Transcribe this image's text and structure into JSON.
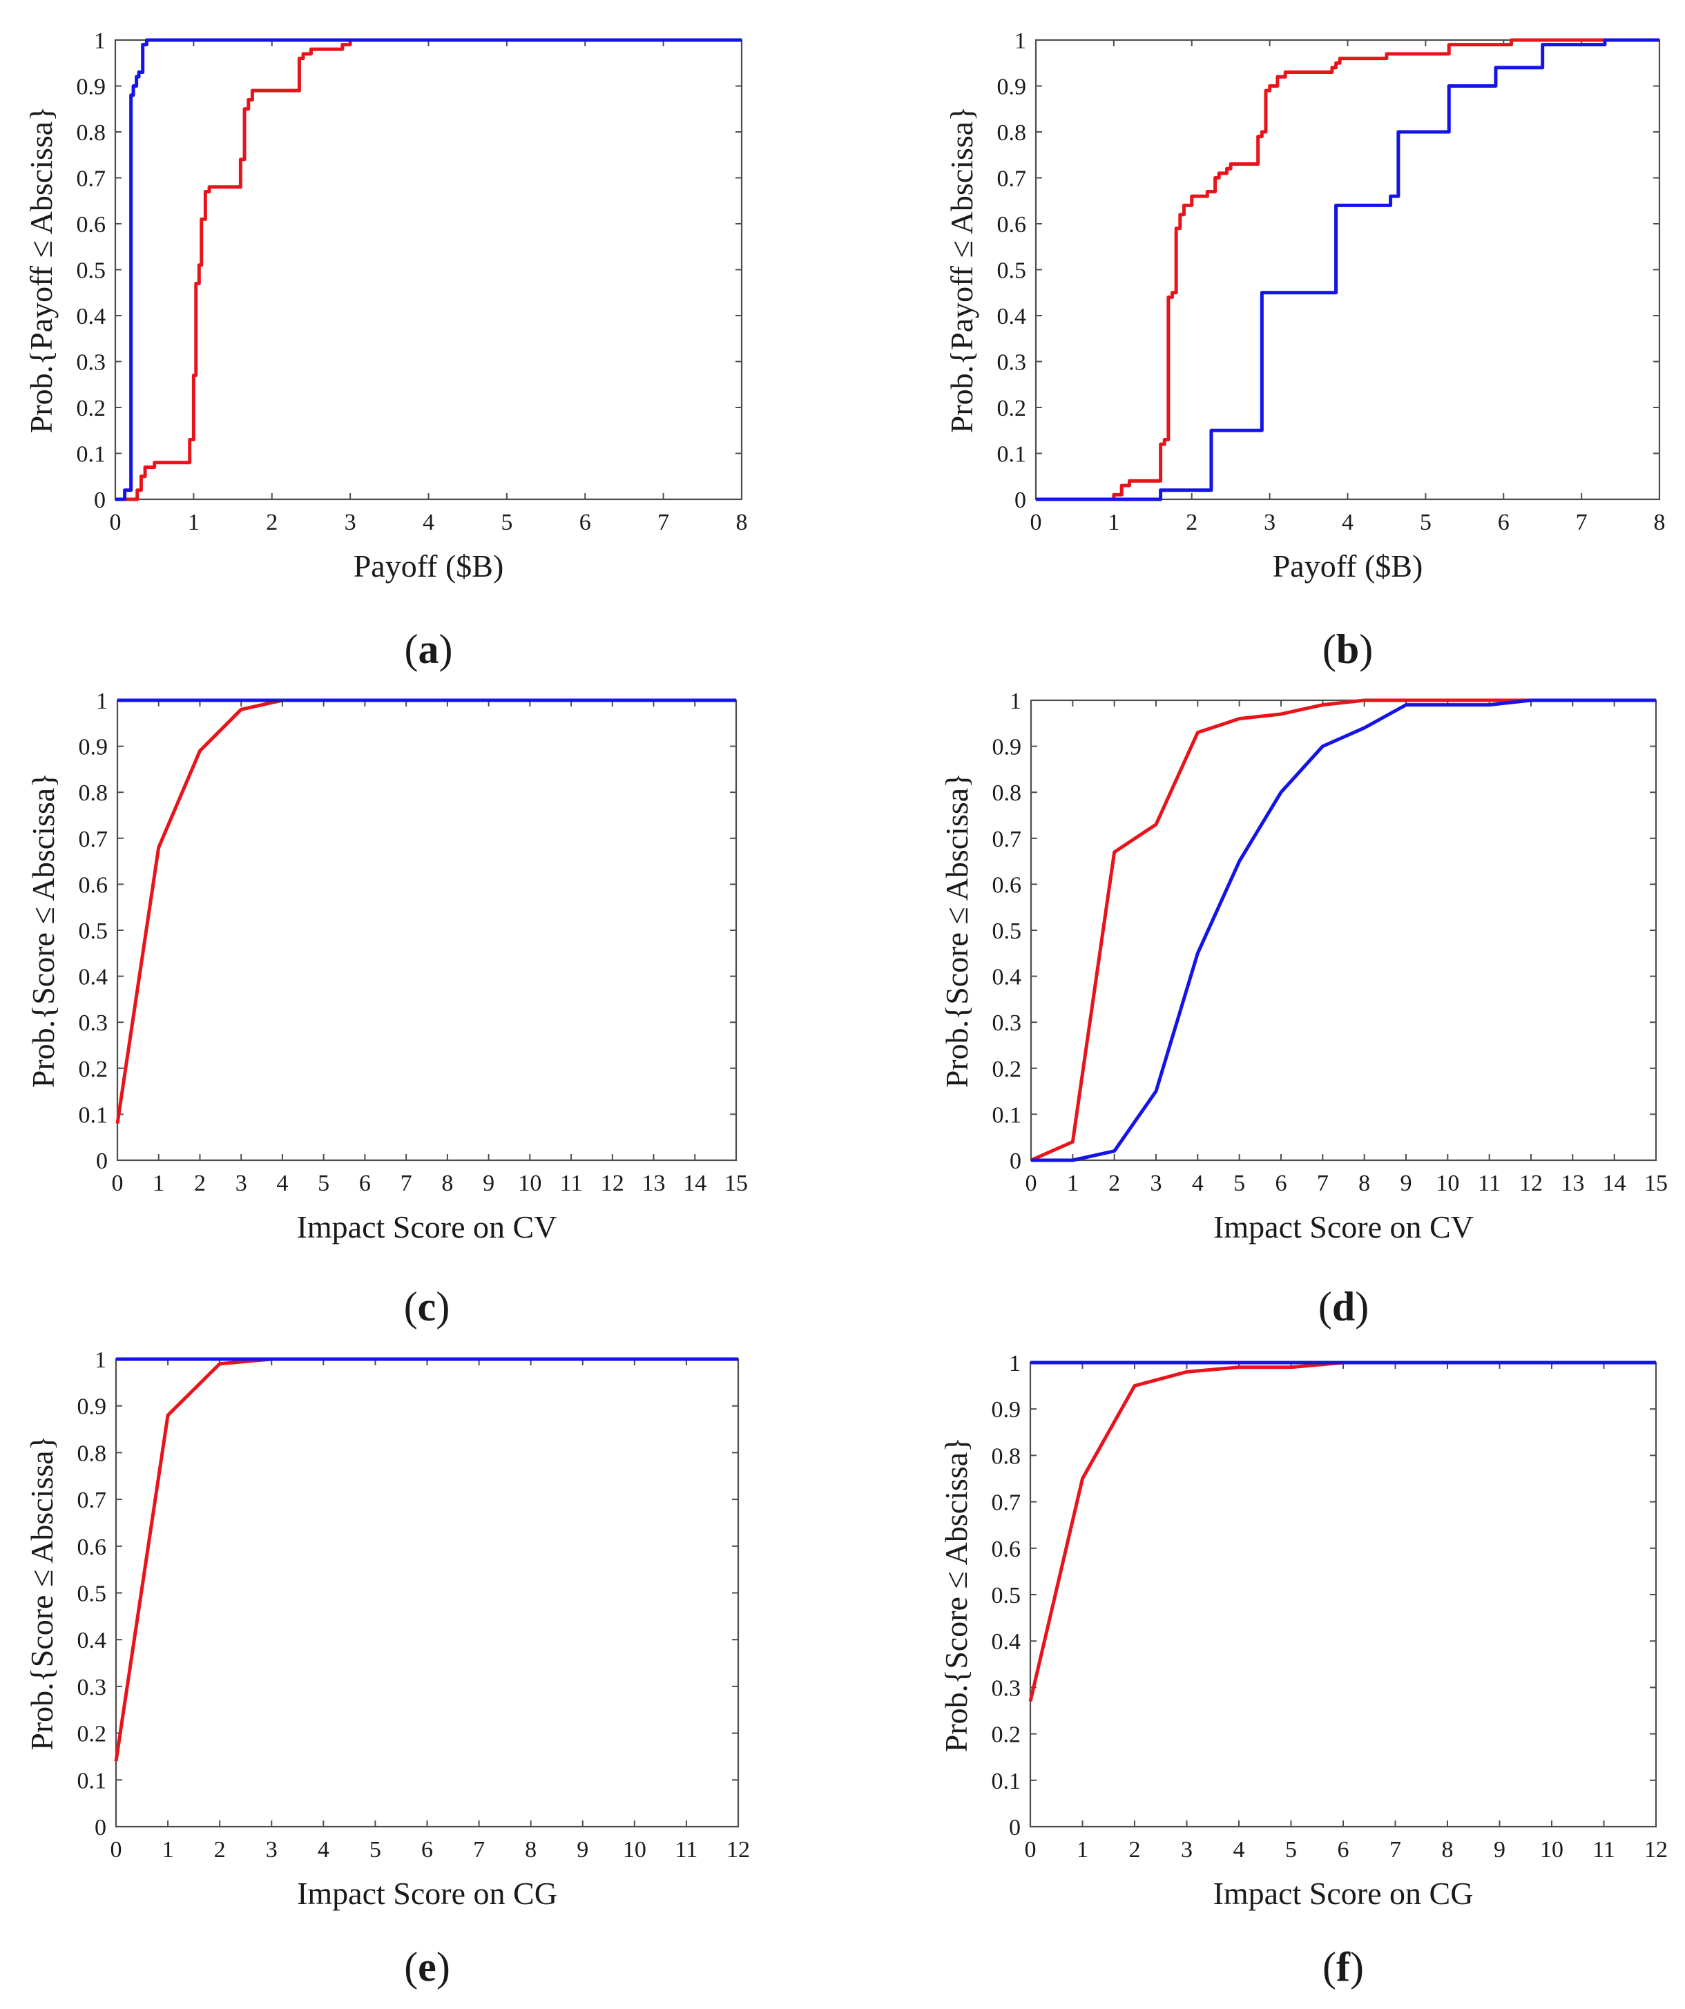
{
  "figure": {
    "panels": [
      {
        "id": "a",
        "label_open": "(",
        "label_letter": "a",
        "label_close": ")"
      },
      {
        "id": "b",
        "label_open": "(",
        "label_letter": "b",
        "label_close": ")"
      },
      {
        "id": "c",
        "label_open": "(",
        "label_letter": "c",
        "label_close": ")"
      },
      {
        "id": "d",
        "label_open": "(",
        "label_letter": "d",
        "label_close": ")"
      },
      {
        "id": "e",
        "label_open": "(",
        "label_letter": "e",
        "label_close": ")"
      },
      {
        "id": "f",
        "label_open": "(",
        "label_letter": "f",
        "label_close": ")"
      }
    ]
  },
  "chart_data": [
    {
      "id": "a",
      "type": "line",
      "step": true,
      "xlabel": "Payoff ($B)",
      "ylabel": "Prob.{Payoff ≤ Abscissa}",
      "xlim": [
        0,
        8
      ],
      "ylim": [
        0,
        1
      ],
      "xticks": [
        0,
        1,
        2,
        3,
        4,
        5,
        6,
        7,
        8
      ],
      "yticks": [
        0,
        0.1,
        0.2,
        0.3,
        0.4,
        0.5,
        0.6,
        0.7,
        0.8,
        0.9,
        1
      ],
      "series": [
        {
          "name": "red",
          "color": "#e8141c",
          "x": [
            0,
            0.18,
            0.28,
            0.33,
            0.38,
            0.5,
            0.95,
            1.0,
            1.03,
            1.07,
            1.1,
            1.15,
            1.2,
            1.25,
            1.6,
            1.65,
            1.7,
            1.75,
            1.8,
            2.35,
            2.4,
            2.5,
            2.9,
            3.0,
            8
          ],
          "y": [
            0,
            0,
            0.02,
            0.05,
            0.07,
            0.08,
            0.13,
            0.27,
            0.47,
            0.51,
            0.61,
            0.67,
            0.68,
            0.68,
            0.74,
            0.85,
            0.87,
            0.89,
            0.89,
            0.96,
            0.97,
            0.98,
            0.99,
            1.0,
            1.0
          ]
        },
        {
          "name": "blue",
          "color": "#1414e6",
          "x": [
            0,
            0.12,
            0.2,
            0.23,
            0.27,
            0.3,
            0.35,
            0.4,
            8
          ],
          "y": [
            0,
            0.02,
            0.88,
            0.9,
            0.92,
            0.93,
            0.99,
            1.0,
            1.0
          ]
        }
      ]
    },
    {
      "id": "b",
      "type": "line",
      "step": true,
      "xlabel": "Payoff ($B)",
      "ylabel": "Prob.{Payoff ≤ Abscissa}",
      "xlim": [
        0,
        8
      ],
      "ylim": [
        0,
        1
      ],
      "xticks": [
        0,
        1,
        2,
        3,
        4,
        5,
        6,
        7,
        8
      ],
      "yticks": [
        0,
        0.1,
        0.2,
        0.3,
        0.4,
        0.5,
        0.6,
        0.7,
        0.8,
        0.9,
        1
      ],
      "series": [
        {
          "name": "red",
          "color": "#e8141c",
          "x": [
            0,
            1.0,
            1.1,
            1.2,
            1.3,
            1.6,
            1.65,
            1.7,
            1.75,
            1.8,
            1.85,
            1.9,
            2.0,
            2.1,
            2.2,
            2.3,
            2.35,
            2.45,
            2.5,
            2.55,
            2.85,
            2.9,
            2.95,
            3.0,
            3.1,
            3.2,
            3.8,
            3.85,
            3.9,
            4.0,
            4.1,
            4.5,
            4.6,
            5.3,
            5.9,
            6.0,
            6.1,
            6.2,
            7.1,
            7.2,
            8
          ],
          "y": [
            0,
            0.01,
            0.03,
            0.04,
            0.04,
            0.12,
            0.13,
            0.44,
            0.45,
            0.59,
            0.62,
            0.64,
            0.66,
            0.66,
            0.67,
            0.7,
            0.71,
            0.72,
            0.73,
            0.73,
            0.79,
            0.8,
            0.89,
            0.9,
            0.92,
            0.93,
            0.94,
            0.95,
            0.96,
            0.96,
            0.96,
            0.97,
            0.97,
            0.99,
            0.99,
            0.99,
            1.0,
            1.0,
            1.0,
            1.0,
            1.0
          ]
        },
        {
          "name": "blue",
          "color": "#1414e6",
          "x": [
            0,
            1.6,
            2.25,
            2.9,
            3.85,
            4.55,
            4.65,
            5.3,
            5.9,
            6.5,
            7.3,
            8
          ],
          "y": [
            0,
            0.02,
            0.15,
            0.45,
            0.64,
            0.66,
            0.8,
            0.9,
            0.94,
            0.99,
            1.0,
            1.0
          ]
        }
      ]
    },
    {
      "id": "c",
      "type": "line",
      "xlabel": "Impact Score on CV",
      "ylabel": "Prob.{Score ≤ Abscissa}",
      "xlim": [
        0,
        15
      ],
      "ylim": [
        0,
        1
      ],
      "xticks": [
        0,
        1,
        2,
        3,
        4,
        5,
        6,
        7,
        8,
        9,
        10,
        11,
        12,
        13,
        14,
        15
      ],
      "yticks": [
        0,
        0.1,
        0.2,
        0.3,
        0.4,
        0.5,
        0.6,
        0.7,
        0.8,
        0.9,
        1
      ],
      "series": [
        {
          "name": "red",
          "color": "#e8141c",
          "x": [
            0,
            1,
            2,
            3,
            4,
            5,
            15
          ],
          "y": [
            0.08,
            0.68,
            0.89,
            0.98,
            1.0,
            1.0,
            1.0
          ]
        },
        {
          "name": "blue",
          "color": "#1414e6",
          "x": [
            0,
            15
          ],
          "y": [
            1.0,
            1.0
          ]
        }
      ]
    },
    {
      "id": "d",
      "type": "line",
      "xlabel": "Impact Score on CV",
      "ylabel": "Prob.{Score ≤ Abscissa}",
      "xlim": [
        0,
        15
      ],
      "ylim": [
        0,
        1
      ],
      "xticks": [
        0,
        1,
        2,
        3,
        4,
        5,
        6,
        7,
        8,
        9,
        10,
        11,
        12,
        13,
        14,
        15
      ],
      "yticks": [
        0,
        0.1,
        0.2,
        0.3,
        0.4,
        0.5,
        0.6,
        0.7,
        0.8,
        0.9,
        1
      ],
      "series": [
        {
          "name": "red",
          "color": "#e8141c",
          "x": [
            0,
            1,
            2,
            3,
            4,
            5,
            6,
            7,
            8,
            9,
            10,
            11,
            12,
            15
          ],
          "y": [
            0.0,
            0.04,
            0.67,
            0.73,
            0.93,
            0.96,
            0.97,
            0.99,
            1.0,
            1.0,
            1.0,
            1.0,
            1.0,
            1.0
          ]
        },
        {
          "name": "blue",
          "color": "#1414e6",
          "x": [
            0,
            1,
            2,
            3,
            4,
            5,
            6,
            7,
            8,
            9,
            10,
            11,
            12,
            13,
            14,
            15
          ],
          "y": [
            0.0,
            0.0,
            0.02,
            0.15,
            0.45,
            0.65,
            0.8,
            0.9,
            0.94,
            0.99,
            0.99,
            0.99,
            1.0,
            1.0,
            1.0,
            1.0
          ]
        }
      ]
    },
    {
      "id": "e",
      "type": "line",
      "xlabel": "Impact Score on CG",
      "ylabel": "Prob.{Score ≤ Abscissa}",
      "xlim": [
        0,
        12
      ],
      "ylim": [
        0,
        1
      ],
      "xticks": [
        0,
        1,
        2,
        3,
        4,
        5,
        6,
        7,
        8,
        9,
        10,
        11,
        12
      ],
      "yticks": [
        0,
        0.1,
        0.2,
        0.3,
        0.4,
        0.5,
        0.6,
        0.7,
        0.8,
        0.9,
        1
      ],
      "series": [
        {
          "name": "red",
          "color": "#e8141c",
          "x": [
            0,
            1,
            2,
            3,
            4,
            12
          ],
          "y": [
            0.14,
            0.88,
            0.99,
            1.0,
            1.0,
            1.0
          ]
        },
        {
          "name": "blue",
          "color": "#1414e6",
          "x": [
            0,
            12
          ],
          "y": [
            1.0,
            1.0
          ]
        }
      ]
    },
    {
      "id": "f",
      "type": "line",
      "xlabel": "Impact Score on CG",
      "ylabel": "Prob.{Score ≤ Abscissa}",
      "xlim": [
        0,
        12
      ],
      "ylim": [
        0,
        1
      ],
      "xticks": [
        0,
        1,
        2,
        3,
        4,
        5,
        6,
        7,
        8,
        9,
        10,
        11,
        12
      ],
      "yticks": [
        0,
        0.1,
        0.2,
        0.3,
        0.4,
        0.5,
        0.6,
        0.7,
        0.8,
        0.9,
        1
      ],
      "series": [
        {
          "name": "red",
          "color": "#e8141c",
          "x": [
            0,
            1,
            2,
            3,
            4,
            5,
            6,
            12
          ],
          "y": [
            0.27,
            0.75,
            0.95,
            0.98,
            0.99,
            0.99,
            1.0,
            1.0
          ]
        },
        {
          "name": "blue",
          "color": "#1414e6",
          "x": [
            0,
            12
          ],
          "y": [
            1.0,
            1.0
          ]
        }
      ]
    }
  ]
}
